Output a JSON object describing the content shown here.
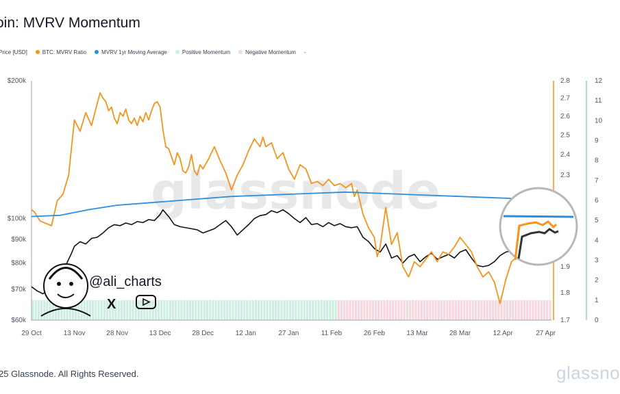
{
  "header": {
    "title": "oin: MVRV Momentum"
  },
  "legend": [
    {
      "label": "Price [USD]",
      "color": "#111111"
    },
    {
      "label": "BTC: MVRV Ratio",
      "color": "#f7931a"
    },
    {
      "label": "MVRV 1yr Moving Average",
      "color": "#2b8fe0"
    },
    {
      "label": "Positive Momentum",
      "color": "#cdeee0"
    },
    {
      "label": "Negative Momentum",
      "color": "#f8d7de"
    },
    {
      "label": "-",
      "color": ""
    }
  ],
  "footer": {
    "copyright": "25 Glassnode. All Rights Reserved.",
    "brand": "glassno"
  },
  "overlay": {
    "watermark": "glassnode",
    "handle": "@ali_charts",
    "x_icon": "X",
    "icons": [
      "x-logo-icon",
      "youtube-icon",
      "avatar-caricature-icon",
      "zoom-magnifier"
    ]
  },
  "chart_data": {
    "type": "line",
    "x_tick_labels": [
      "29 Oct",
      "13 Nov",
      "28 Nov",
      "13 Dec",
      "28 Dec",
      "12 Jan",
      "27 Jan",
      "11 Feb",
      "26 Feb",
      "13 Mar",
      "28 Mar",
      "12 Apr",
      "27 Apr"
    ],
    "x_tick_index": [
      0,
      15,
      30,
      45,
      60,
      75,
      90,
      105,
      120,
      135,
      150,
      165,
      180
    ],
    "y_left": {
      "label": "Price [USD]",
      "scale": "log",
      "range": [
        60000,
        200000
      ],
      "ticks": [
        60000,
        70000,
        80000,
        90000,
        100000,
        200000
      ],
      "tick_labels": [
        "$60k",
        "$70k",
        "$80k",
        "$90k",
        "$100k",
        "$200k"
      ]
    },
    "y_mid": {
      "label": "BTC: MVRV Ratio",
      "scale": "log",
      "range": [
        1.7,
        2.8
      ],
      "ticks": [
        1.7,
        1.8,
        1.9,
        2.3,
        2.4,
        2.5,
        2.6,
        2.7,
        2.8
      ],
      "tick_labels": [
        "1.7",
        "1.8",
        "1.9",
        "2.3",
        "2.4",
        "2.5",
        "2.6",
        "2.7",
        "2.8"
      ]
    },
    "y_right": {
      "label": "Momentum",
      "range": [
        0,
        12
      ],
      "ticks": [
        0,
        1,
        2,
        3,
        4,
        5,
        6,
        7,
        8,
        9,
        10,
        11,
        12
      ]
    },
    "momentum": {
      "positive_until_index": 107,
      "positive_color": "#cdeee0",
      "negative_color": "#f8d7de",
      "level": 1
    },
    "series": [
      {
        "name": "Price [USD]",
        "axis": "left",
        "color": "#111111",
        "points": [
          [
            0,
            71000
          ],
          [
            2,
            69500
          ],
          [
            4,
            68500
          ],
          [
            6,
            69800
          ],
          [
            8,
            72000
          ],
          [
            10,
            75500
          ],
          [
            12,
            79000
          ],
          [
            14,
            84000
          ],
          [
            15,
            87000
          ],
          [
            17,
            89000
          ],
          [
            19,
            88000
          ],
          [
            21,
            90500
          ],
          [
            23,
            91000
          ],
          [
            25,
            93000
          ],
          [
            27,
            95500
          ],
          [
            29,
            97000
          ],
          [
            31,
            96500
          ],
          [
            33,
            97800
          ],
          [
            35,
            97000
          ],
          [
            37,
            98500
          ],
          [
            39,
            98000
          ],
          [
            41,
            99500
          ],
          [
            43,
            99000
          ],
          [
            45,
            102000
          ],
          [
            46,
            104500
          ],
          [
            48,
            101000
          ],
          [
            50,
            97000
          ],
          [
            52,
            96000
          ],
          [
            54,
            95500
          ],
          [
            56,
            95000
          ],
          [
            58,
            94500
          ],
          [
            60,
            93000
          ],
          [
            62,
            94000
          ],
          [
            64,
            95000
          ],
          [
            66,
            97000
          ],
          [
            68,
            99000
          ],
          [
            70,
            96000
          ],
          [
            72,
            92000
          ],
          [
            74,
            94500
          ],
          [
            76,
            97000
          ],
          [
            78,
            100000
          ],
          [
            80,
            101500
          ],
          [
            82,
            102000
          ],
          [
            84,
            104000
          ],
          [
            86,
            103000
          ],
          [
            88,
            104500
          ],
          [
            90,
            102500
          ],
          [
            92,
            100000
          ],
          [
            94,
            98000
          ],
          [
            96,
            100500
          ],
          [
            98,
            97000
          ],
          [
            100,
            97500
          ],
          [
            102,
            96000
          ],
          [
            104,
            98000
          ],
          [
            106,
            96500
          ],
          [
            108,
            97500
          ],
          [
            110,
            96000
          ],
          [
            112,
            95500
          ],
          [
            114,
            96000
          ],
          [
            116,
            91000
          ],
          [
            118,
            89000
          ],
          [
            120,
            86000
          ],
          [
            122,
            84500
          ],
          [
            124,
            88000
          ],
          [
            126,
            82000
          ],
          [
            128,
            83000
          ],
          [
            130,
            80000
          ],
          [
            132,
            82500
          ],
          [
            134,
            83500
          ],
          [
            136,
            80500
          ],
          [
            138,
            82500
          ],
          [
            140,
            84000
          ],
          [
            142,
            81500
          ],
          [
            144,
            82500
          ],
          [
            146,
            83500
          ],
          [
            148,
            82000
          ],
          [
            150,
            84500
          ],
          [
            152,
            85500
          ],
          [
            154,
            82000
          ],
          [
            156,
            79000
          ],
          [
            158,
            78500
          ],
          [
            160,
            79000
          ],
          [
            162,
            80500
          ],
          [
            164,
            83000
          ],
          [
            166,
            84500
          ],
          [
            168,
            85000
          ],
          [
            170,
            84000
          ],
          [
            172,
            85000
          ],
          [
            174,
            87000
          ],
          [
            176,
            88000
          ],
          [
            178,
            87500
          ],
          [
            180,
            88500
          ],
          [
            182,
            90000
          ]
        ]
      },
      {
        "name": "BTC: MVRV Ratio",
        "axis": "mid",
        "color": "#f7931a",
        "points": [
          [
            0,
            2.14
          ],
          [
            1,
            2.13
          ],
          [
            3,
            2.09
          ],
          [
            5,
            2.08
          ],
          [
            7,
            2.07
          ],
          [
            9,
            2.18
          ],
          [
            11,
            2.21
          ],
          [
            13,
            2.3
          ],
          [
            15,
            2.58
          ],
          [
            17,
            2.52
          ],
          [
            19,
            2.62
          ],
          [
            21,
            2.55
          ],
          [
            23,
            2.67
          ],
          [
            24,
            2.73
          ],
          [
            25,
            2.7
          ],
          [
            26,
            2.68
          ],
          [
            27,
            2.63
          ],
          [
            28,
            2.65
          ],
          [
            29,
            2.59
          ],
          [
            30,
            2.56
          ],
          [
            31,
            2.62
          ],
          [
            32,
            2.6
          ],
          [
            33,
            2.64
          ],
          [
            34,
            2.58
          ],
          [
            35,
            2.56
          ],
          [
            36,
            2.59
          ],
          [
            37,
            2.55
          ],
          [
            38,
            2.6
          ],
          [
            39,
            2.57
          ],
          [
            40,
            2.62
          ],
          [
            41,
            2.58
          ],
          [
            42,
            2.63
          ],
          [
            43,
            2.67
          ],
          [
            44,
            2.68
          ],
          [
            45,
            2.65
          ],
          [
            46,
            2.53
          ],
          [
            47,
            2.44
          ],
          [
            48,
            2.43
          ],
          [
            49,
            2.39
          ],
          [
            50,
            2.35
          ],
          [
            51,
            2.41
          ],
          [
            52,
            2.38
          ],
          [
            53,
            2.32
          ],
          [
            54,
            2.31
          ],
          [
            55,
            2.34
          ],
          [
            56,
            2.4
          ],
          [
            57,
            2.32
          ],
          [
            58,
            2.3
          ],
          [
            59,
            2.35
          ],
          [
            60,
            2.33
          ],
          [
            62,
            2.38
          ],
          [
            64,
            2.44
          ],
          [
            66,
            2.37
          ],
          [
            68,
            2.31
          ],
          [
            70,
            2.23
          ],
          [
            72,
            2.3
          ],
          [
            74,
            2.35
          ],
          [
            76,
            2.42
          ],
          [
            78,
            2.48
          ],
          [
            80,
            2.44
          ],
          [
            81,
            2.49
          ],
          [
            82,
            2.44
          ],
          [
            84,
            2.46
          ],
          [
            86,
            2.38
          ],
          [
            88,
            2.41
          ],
          [
            90,
            2.33
          ],
          [
            92,
            2.28
          ],
          [
            94,
            2.35
          ],
          [
            96,
            2.33
          ],
          [
            98,
            2.26
          ],
          [
            100,
            2.27
          ],
          [
            102,
            2.25
          ],
          [
            104,
            2.28
          ],
          [
            106,
            2.25
          ],
          [
            108,
            2.26
          ],
          [
            110,
            2.24
          ],
          [
            112,
            2.26
          ],
          [
            113,
            2.2
          ],
          [
            114,
            2.23
          ],
          [
            116,
            2.12
          ],
          [
            118,
            2.06
          ],
          [
            120,
            2.02
          ],
          [
            121,
            1.94
          ],
          [
            122,
            1.98
          ],
          [
            124,
            2.15
          ],
          [
            126,
            1.99
          ],
          [
            128,
            2.04
          ],
          [
            130,
            1.9
          ],
          [
            132,
            1.86
          ],
          [
            134,
            1.92
          ],
          [
            136,
            1.9
          ],
          [
            138,
            1.93
          ],
          [
            140,
            1.96
          ],
          [
            142,
            1.92
          ],
          [
            144,
            1.96
          ],
          [
            146,
            1.95
          ],
          [
            148,
            1.98
          ],
          [
            150,
            2.02
          ],
          [
            152,
            1.99
          ],
          [
            154,
            1.96
          ],
          [
            156,
            1.9
          ],
          [
            158,
            1.86
          ],
          [
            160,
            1.88
          ],
          [
            162,
            1.84
          ],
          [
            164,
            1.76
          ],
          [
            166,
            1.85
          ],
          [
            168,
            1.92
          ],
          [
            170,
            1.94
          ],
          [
            172,
            1.93
          ],
          [
            174,
            1.95
          ],
          [
            176,
            1.97
          ],
          [
            178,
            1.98
          ],
          [
            180,
            2.0
          ],
          [
            182,
            2.02
          ]
        ]
      },
      {
        "name": "MVRV 1yr Moving Average",
        "axis": "mid",
        "color": "#2b8fe0",
        "points": [
          [
            0,
            2.11
          ],
          [
            10,
            2.115
          ],
          [
            20,
            2.14
          ],
          [
            30,
            2.16
          ],
          [
            40,
            2.17
          ],
          [
            50,
            2.18
          ],
          [
            60,
            2.19
          ],
          [
            70,
            2.2
          ],
          [
            80,
            2.205
          ],
          [
            90,
            2.21
          ],
          [
            100,
            2.215
          ],
          [
            110,
            2.22
          ],
          [
            120,
            2.215
          ],
          [
            130,
            2.21
          ],
          [
            140,
            2.205
          ],
          [
            150,
            2.2
          ],
          [
            160,
            2.195
          ],
          [
            170,
            2.19
          ],
          [
            180,
            2.185
          ]
        ]
      }
    ]
  }
}
